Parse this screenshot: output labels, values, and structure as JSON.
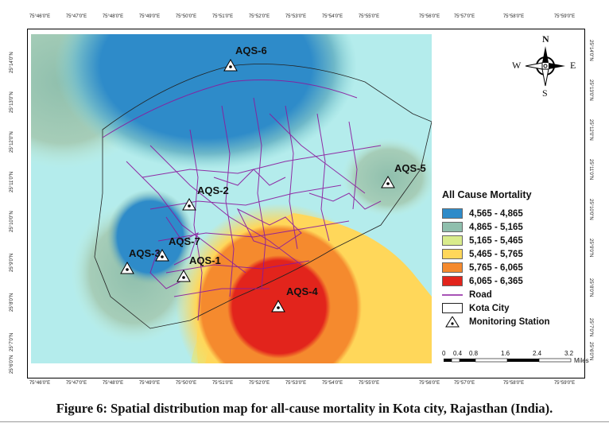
{
  "map": {
    "top_ticks": [
      "75°46'0\"E",
      "75°47'0\"E",
      "75°48'0\"E",
      "75°49'0\"E",
      "75°50'0\"E",
      "75°51'0\"E",
      "75°52'0\"E",
      "75°53'0\"E",
      "75°54'0\"E",
      "75°55'0\"E",
      "75°56'0\"E",
      "75°57'0\"E",
      "75°58'0\"E",
      "75°59'0\"E"
    ],
    "bottom_ticks": [
      "75°46'0\"E",
      "75°47'0\"E",
      "75°48'0\"E",
      "75°49'0\"E",
      "75°50'0\"E",
      "75°51'0\"E",
      "75°52'0\"E",
      "75°53'0\"E",
      "75°54'0\"E",
      "75°55'0\"E",
      "75°56'0\"E",
      "75°57'0\"E",
      "75°58'0\"E",
      "75°59'0\"E"
    ],
    "side_ticks": [
      "25°14'0\"N",
      "25°13'0\"N",
      "25°12'0\"N",
      "25°11'0\"N",
      "25°10'0\"N",
      "25°9'0\"N",
      "25°8'0\"N",
      "25°7'0\"N",
      "25°6'0\"N"
    ],
    "compass": {
      "n": "N",
      "s": "S",
      "e": "E",
      "w": "W"
    },
    "stations": [
      {
        "id": "AQS-6",
        "label": "AQS-6"
      },
      {
        "id": "AQS-5",
        "label": "AQS-5"
      },
      {
        "id": "AQS-2",
        "label": "AQS-2"
      },
      {
        "id": "AQS-7",
        "label": "AQS-7"
      },
      {
        "id": "AQS-3",
        "label": "AQS-3"
      },
      {
        "id": "AQS-1",
        "label": "AQS-1"
      },
      {
        "id": "AQS-4",
        "label": "AQS-4"
      }
    ],
    "legend": {
      "title": "All Cause Mortality",
      "classes": [
        {
          "label": "4,565 - 4,865",
          "color": "#2e8bc9"
        },
        {
          "label": "4,865 - 5,165",
          "color": "#8fbfad"
        },
        {
          "label": "5,165 - 5,465",
          "color": "#d9ec8c"
        },
        {
          "label": "5,465 - 5,765",
          "color": "#ffd75a"
        },
        {
          "label": "5,765 - 6,065",
          "color": "#f58a2e"
        },
        {
          "label": "6,065 - 6,365",
          "color": "#e2241c"
        }
      ],
      "road_label": "Road",
      "road_color": "#8b1a9e",
      "city_label": "Kota City",
      "station_label": "Monitoring Station"
    },
    "scale": {
      "ticks": [
        "0",
        "0.4",
        "0.8",
        "1.6",
        "2.4",
        "3.2"
      ],
      "unit": "Miles"
    },
    "caption": "Figure 6: Spatial distribution map for all-cause mortality in Kota city, Rajasthan (India)."
  }
}
